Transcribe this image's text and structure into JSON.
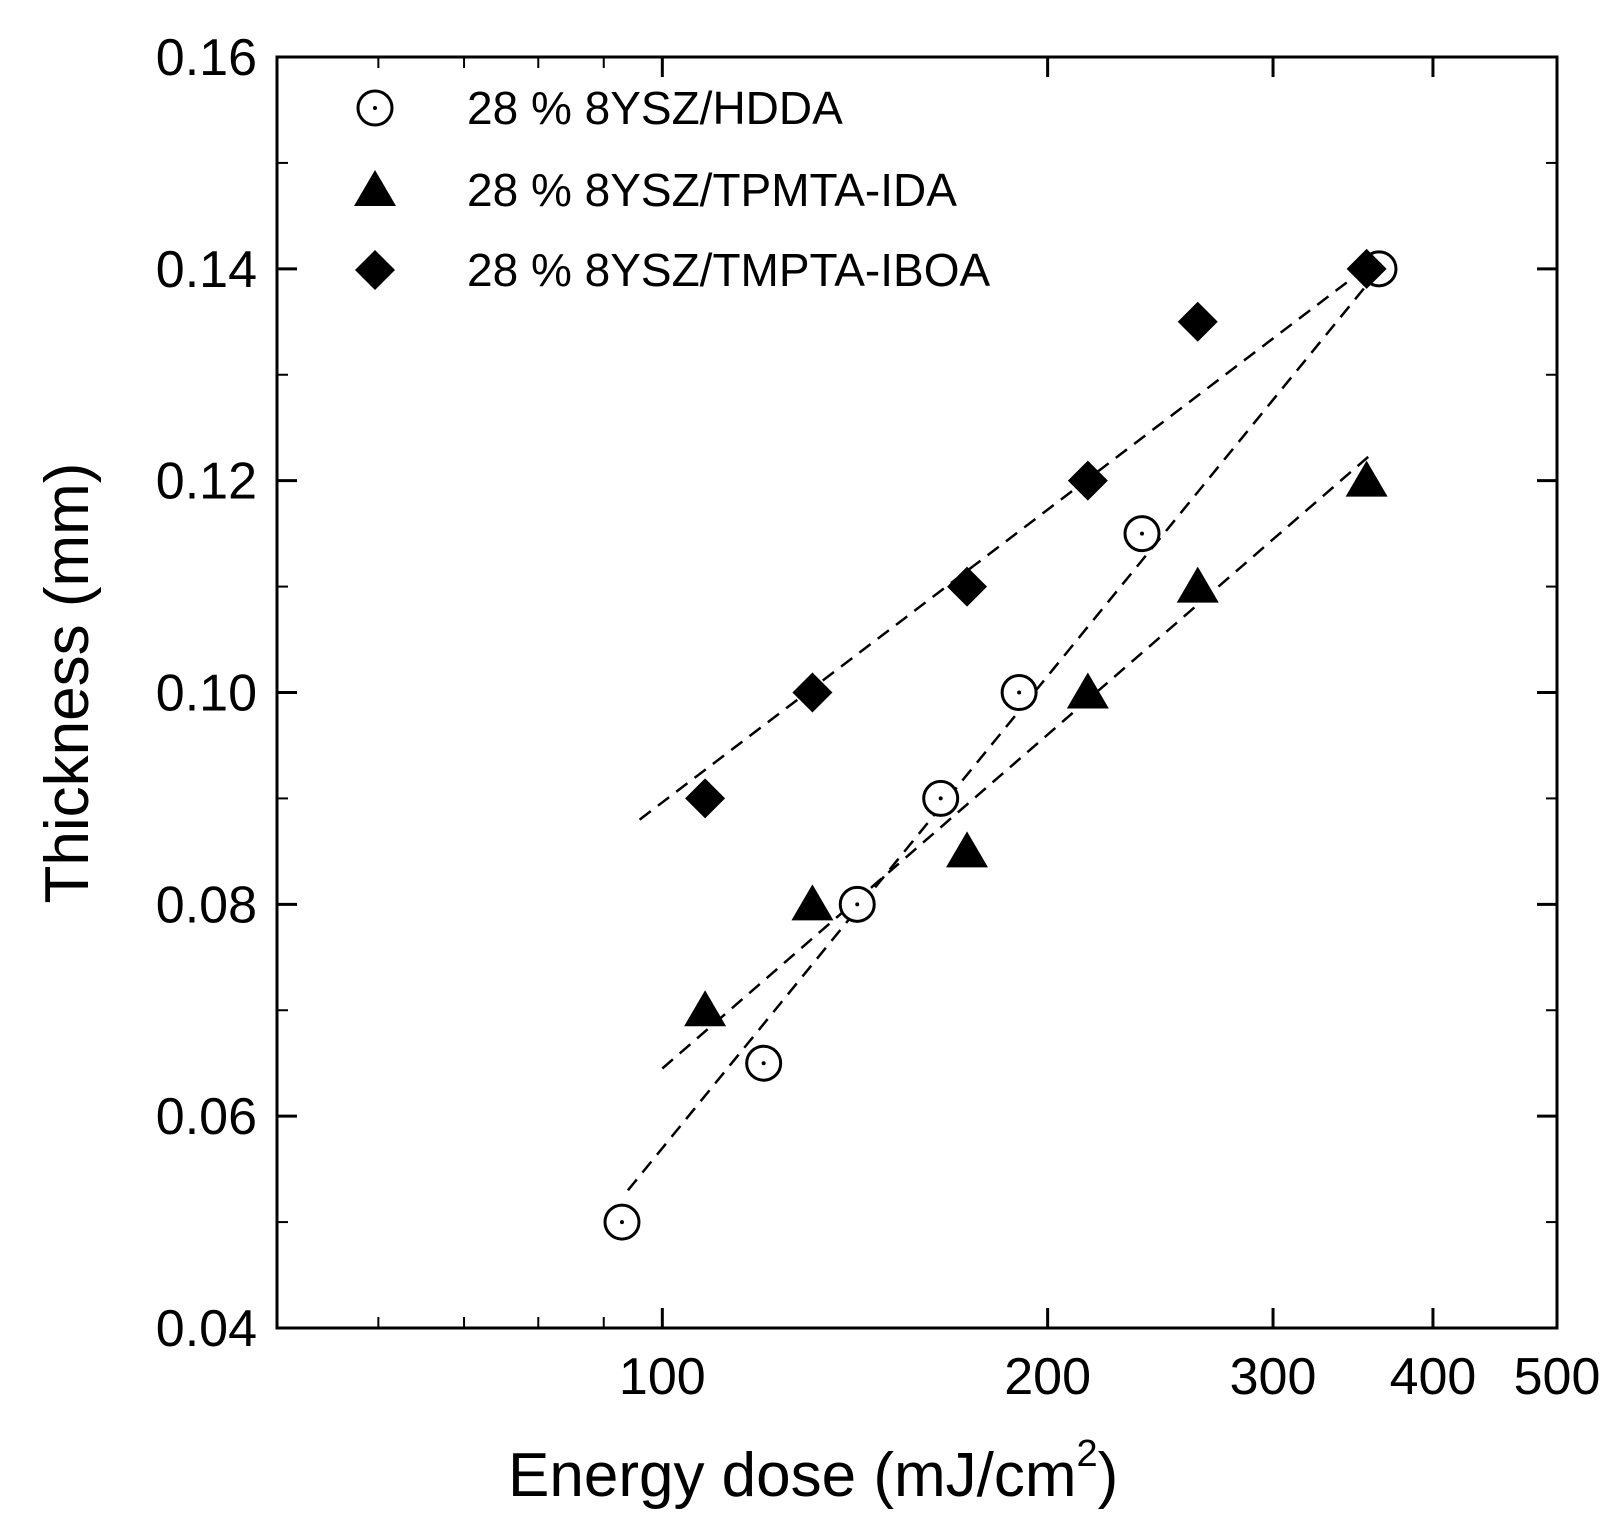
{
  "chart_data": {
    "type": "scatter",
    "xscale": "log",
    "xlim": [
      50,
      500
    ],
    "ylim": [
      0.04,
      0.16
    ],
    "xlabel": "Energy dose (mJ/cm",
    "xlabel_superscript": "2",
    "xlabel_close": ")",
    "ylabel": "Thickness (mm)",
    "x_tick_labels": [
      {
        "value": 100,
        "label": "100"
      },
      {
        "value": 200,
        "label": "200"
      },
      {
        "value": 300,
        "label": "300"
      },
      {
        "value": 400,
        "label": "400"
      },
      {
        "value": 500,
        "label": "500"
      }
    ],
    "y_tick_labels": [
      {
        "value": 0.04,
        "label": "0.04"
      },
      {
        "value": 0.06,
        "label": "0.06"
      },
      {
        "value": 0.08,
        "label": "0.08"
      },
      {
        "value": 0.1,
        "label": "0.10"
      },
      {
        "value": 0.12,
        "label": "0.12"
      },
      {
        "value": 0.14,
        "label": "0.14"
      },
      {
        "value": 0.16,
        "label": "0.16"
      }
    ],
    "series": [
      {
        "name": "28 % 8YSZ/HDDA",
        "marker": "open-circle",
        "x": [
          93,
          120,
          142,
          165,
          190,
          237,
          363
        ],
        "y": [
          0.05,
          0.065,
          0.08,
          0.09,
          0.1,
          0.115,
          0.14
        ],
        "fit": {
          "x": [
            94,
            358
          ],
          "y": [
            0.053,
            0.139
          ]
        }
      },
      {
        "name": "28 % 8YSZ/TPMTA-IDA",
        "marker": "filled-triangle",
        "x": [
          108,
          131,
          173,
          215,
          262,
          355
        ],
        "y": [
          0.07,
          0.08,
          0.085,
          0.1,
          0.11,
          0.12
        ],
        "fit": {
          "x": [
            100,
            358
          ],
          "y": [
            0.0645,
            0.1225
          ]
        }
      },
      {
        "name": "28 % 8YSZ/TMPTA-IBOA",
        "marker": "filled-diamond",
        "x": [
          108,
          131,
          173,
          215,
          262,
          355
        ],
        "y": [
          0.09,
          0.1,
          0.11,
          0.12,
          0.135,
          0.14
        ],
        "fit": {
          "x": [
            96,
            345
          ],
          "y": [
            0.088,
            0.139
          ]
        }
      }
    ]
  }
}
